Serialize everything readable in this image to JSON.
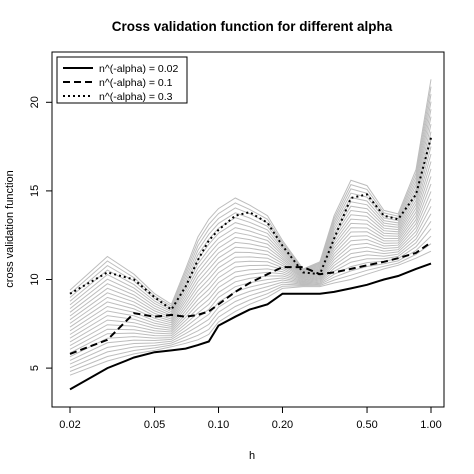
{
  "chart_data": {
    "type": "line",
    "title": "Cross validation function for different alpha",
    "xlabel": "h",
    "ylabel": "cross validation function",
    "x_scale": "log",
    "xlim": [
      0.02,
      1.0
    ],
    "ylim": [
      3.2,
      22.5
    ],
    "x_ticks": [
      0.02,
      0.05,
      0.1,
      0.2,
      0.5,
      1.0
    ],
    "x_tick_labels": [
      "0.02",
      "0.05",
      "0.10",
      "0.20",
      "0.50",
      "1.00"
    ],
    "y_ticks": [
      5,
      10,
      15,
      20
    ],
    "y_tick_labels": [
      "5",
      "10",
      "15",
      "20"
    ],
    "grid": false,
    "legend_position": "top-left",
    "x": [
      0.02,
      0.03,
      0.04,
      0.05,
      0.06,
      0.07,
      0.08,
      0.09,
      0.1,
      0.12,
      0.14,
      0.17,
      0.2,
      0.25,
      0.3,
      0.35,
      0.42,
      0.5,
      0.6,
      0.7,
      0.85,
      1.0
    ],
    "series": [
      {
        "name": "n^(-alpha) = 0.02",
        "style": "solid",
        "color": "#000000",
        "values": [
          3.8,
          5.0,
          5.6,
          5.9,
          6.0,
          6.1,
          6.3,
          6.5,
          7.4,
          7.9,
          8.3,
          8.6,
          9.2,
          9.2,
          9.2,
          9.3,
          9.5,
          9.7,
          10.0,
          10.2,
          10.6,
          10.9
        ]
      },
      {
        "name": "n^(-alpha) = 0.1",
        "style": "dashed",
        "color": "#000000",
        "values": [
          5.8,
          6.6,
          8.1,
          7.9,
          8.0,
          7.9,
          8.0,
          8.2,
          8.6,
          9.3,
          9.8,
          10.3,
          10.7,
          10.7,
          10.3,
          10.4,
          10.6,
          10.8,
          11.0,
          11.2,
          11.5,
          12.1
        ]
      },
      {
        "name": "n^(-alpha) = 0.3",
        "style": "dotted",
        "color": "#000000",
        "values": [
          9.2,
          10.4,
          10.0,
          9.0,
          8.3,
          9.6,
          11.1,
          12.2,
          12.8,
          13.6,
          13.8,
          13.2,
          11.9,
          10.4,
          10.3,
          12.3,
          14.6,
          14.8,
          13.6,
          13.4,
          14.8,
          18.0
        ]
      }
    ],
    "background_series": {
      "color": "#bdbdbd",
      "count": 24,
      "note_free": true,
      "lower": [
        4.6,
        5.4,
        5.8,
        6.0,
        6.2,
        6.4,
        6.6,
        6.9,
        7.6,
        8.2,
        8.6,
        9.0,
        9.5,
        9.6,
        9.6,
        9.8,
        10.0,
        10.3,
        10.6,
        10.8,
        11.2,
        11.6
      ],
      "upper": [
        9.4,
        11.3,
        10.3,
        9.2,
        8.6,
        10.6,
        12.4,
        13.4,
        14.0,
        14.6,
        14.2,
        13.6,
        12.2,
        10.6,
        11.0,
        13.6,
        15.6,
        15.3,
        13.9,
        13.7,
        16.2,
        21.3
      ]
    }
  }
}
